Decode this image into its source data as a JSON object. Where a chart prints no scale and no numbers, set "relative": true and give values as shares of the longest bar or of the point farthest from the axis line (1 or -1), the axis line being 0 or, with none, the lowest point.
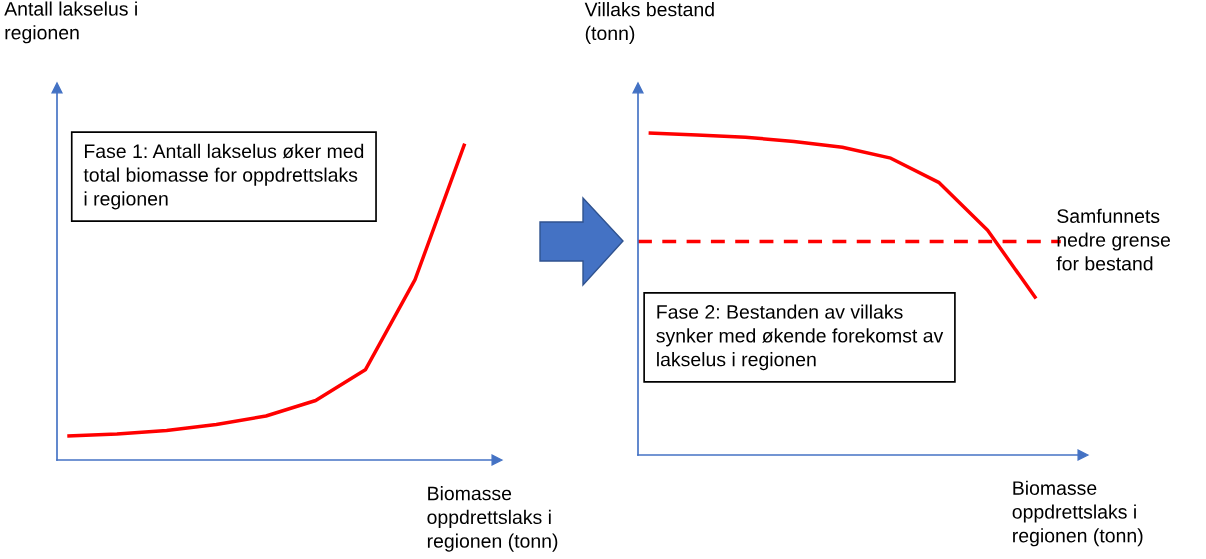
{
  "chart_data": [
    {
      "type": "line",
      "relative": true,
      "ylabel": "Antall lakselus i regionen",
      "xlabel": "Biomasse oppdrettslaks i regionen (tonn)",
      "categories": [
        null,
        null,
        null,
        null,
        null,
        null,
        null,
        null,
        null
      ],
      "series": [
        {
          "color": "#ff0000",
          "values": [
            0.076,
            0.082,
            0.093,
            0.112,
            0.139,
            0.188,
            0.285,
            0.57,
            1.0
          ]
        }
      ],
      "annotations": [
        "Fase 1: Antall lakselus øker med total biomasse for oppdrettslaks i regionen"
      ]
    },
    {
      "type": "line",
      "relative": true,
      "ylabel": "Villaks bestand (tonn)",
      "xlabel": "Biomasse oppdrettslaks i regionen (tonn)",
      "categories": [
        null,
        null,
        null,
        null,
        null,
        null,
        null,
        null,
        null
      ],
      "series": [
        {
          "color": "#ff0000",
          "values": [
            1.0,
            0.994,
            0.987,
            0.974,
            0.956,
            0.922,
            0.846,
            0.698,
            0.486
          ]
        }
      ],
      "ref_lines": [
        {
          "axis": "y",
          "value": 0.663,
          "label": "Samfunnets nedre grense for bestand",
          "color": "#ff0000",
          "line_style": "dashed"
        }
      ],
      "annotations": [
        "Fase 2: Bestanden av villaks synker med økende forekomst av lakselus i regionen"
      ]
    }
  ]
}
